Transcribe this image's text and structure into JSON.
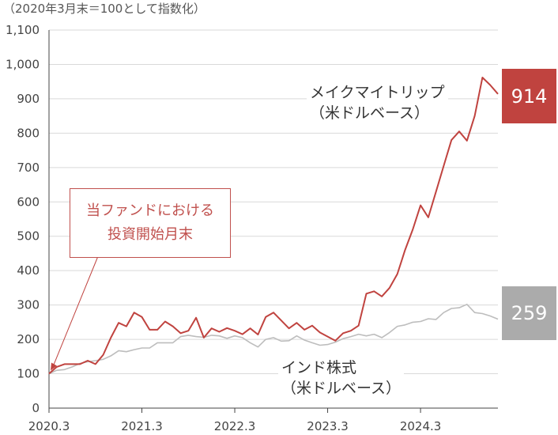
{
  "unit_note": "（2020年3月末＝100として指数化）",
  "annotation": {
    "line1": "当ファンドにおける",
    "line2": "投資開始月末"
  },
  "colors": {
    "fund": "#c0433f",
    "index": "#bdbdbd",
    "grid": "#d9d9d9",
    "axis": "#444444"
  },
  "chart_data": {
    "type": "line",
    "xlabel": "",
    "ylabel": "",
    "ylim": [
      0,
      1100
    ],
    "yticks": [
      "0",
      "100",
      "200",
      "300",
      "400",
      "500",
      "600",
      "700",
      "800",
      "900",
      "1,000",
      "1,100"
    ],
    "x_tick_labels": [
      "2020.3",
      "2021.3",
      "2022.3",
      "2023.3",
      "2024.3"
    ],
    "x_start": "2020-03",
    "grid": "horizontal",
    "series": [
      {
        "name_lines": [
          "メイクマイトリップ",
          "（米ドルベース）"
        ],
        "color": "#c0433f",
        "end_value": "914",
        "values": [
          100,
          120,
          128,
          128,
          128,
          138,
          128,
          155,
          205,
          248,
          238,
          278,
          265,
          228,
          228,
          252,
          238,
          218,
          225,
          263,
          205,
          232,
          222,
          233,
          225,
          215,
          232,
          214,
          265,
          278,
          255,
          232,
          248,
          228,
          240,
          220,
          208,
          196,
          218,
          225,
          240,
          333,
          340,
          325,
          350,
          390,
          460,
          520,
          590,
          555,
          630,
          705,
          780,
          805,
          778,
          850,
          962,
          940,
          914
        ]
      },
      {
        "name_lines": [
          "インド株式",
          "（米ドルベース）"
        ],
        "color": "#bdbdbd",
        "end_value": "259",
        "values": [
          100,
          110,
          112,
          120,
          130,
          135,
          138,
          142,
          152,
          167,
          164,
          170,
          175,
          175,
          190,
          190,
          190,
          208,
          212,
          208,
          206,
          212,
          210,
          203,
          210,
          205,
          190,
          178,
          200,
          205,
          195,
          196,
          210,
          198,
          190,
          183,
          185,
          192,
          202,
          208,
          215,
          210,
          215,
          205,
          220,
          238,
          242,
          250,
          252,
          260,
          258,
          278,
          290,
          292,
          302,
          278,
          275,
          268,
          259
        ]
      }
    ]
  }
}
